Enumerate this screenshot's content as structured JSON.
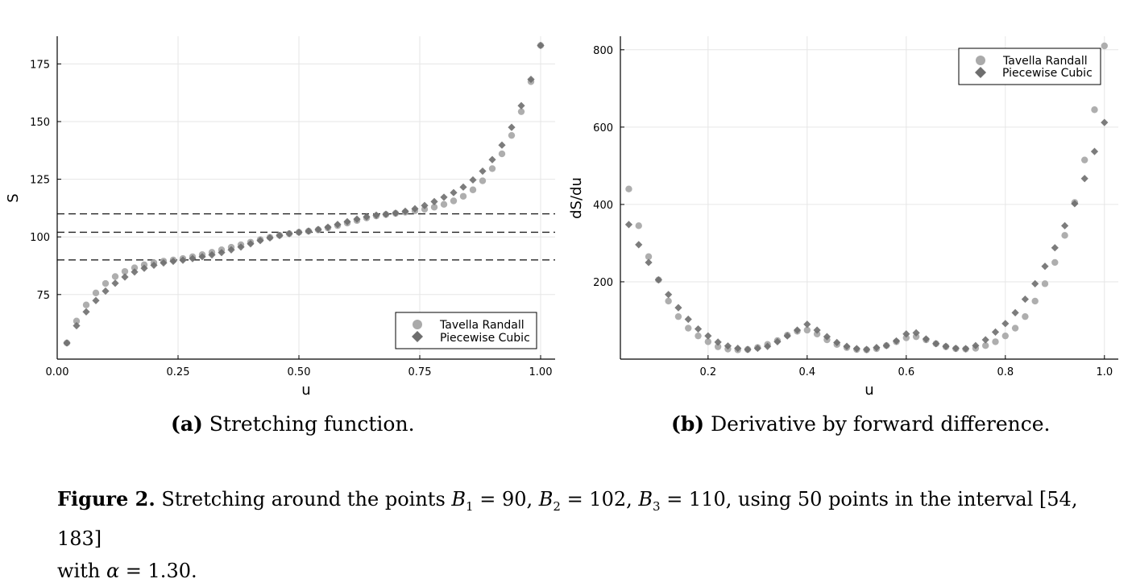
{
  "chart_data": [
    {
      "type": "scatter",
      "xlabel": "u",
      "ylabel": "S",
      "xlim": [
        0,
        1.03
      ],
      "ylim": [
        47,
        187
      ],
      "xticks": [
        0.0,
        0.25,
        0.5,
        0.75,
        1.0
      ],
      "xtick_labels": [
        "0.00",
        "0.25",
        "0.50",
        "0.75",
        "1.00"
      ],
      "yticks": [
        75,
        100,
        125,
        150,
        175
      ],
      "ytick_labels": [
        "75",
        "100",
        "125",
        "150",
        "175"
      ],
      "grid": true,
      "legend_position": "bottom-right",
      "hlines": [
        90,
        102,
        110
      ],
      "series": [
        {
          "name": "Tavella Randall",
          "marker": "circle",
          "color": "#aaaaaa",
          "x": [
            0.02,
            0.04,
            0.06,
            0.08,
            0.1,
            0.12,
            0.14,
            0.16,
            0.18,
            0.2,
            0.22,
            0.24,
            0.26,
            0.28,
            0.3,
            0.32,
            0.34,
            0.36,
            0.38,
            0.4,
            0.42,
            0.44,
            0.46,
            0.48,
            0.5,
            0.52,
            0.54,
            0.56,
            0.58,
            0.6,
            0.62,
            0.64,
            0.66,
            0.68,
            0.7,
            0.72,
            0.74,
            0.76,
            0.78,
            0.8,
            0.82,
            0.84,
            0.86,
            0.88,
            0.9,
            0.92,
            0.94,
            0.96,
            0.98,
            1.0
          ],
          "y": [
            54.0,
            63.5,
            70.5,
            75.7,
            79.8,
            82.8,
            85.0,
            86.6,
            87.9,
            88.8,
            89.5,
            90.0,
            90.6,
            91.4,
            92.3,
            93.3,
            94.4,
            95.5,
            96.6,
            97.7,
            98.8,
            99.8,
            100.7,
            101.4,
            102.0,
            102.5,
            103.1,
            103.9,
            104.9,
            106.0,
            107.1,
            108.2,
            109.1,
            109.7,
            110.2,
            110.7,
            111.3,
            112.0,
            112.9,
            114.1,
            115.6,
            117.6,
            120.4,
            124.3,
            129.6,
            136.0,
            144.0,
            154.3,
            167.3,
            183.0
          ]
        },
        {
          "name": "Piecewise Cubic",
          "marker": "diamond",
          "color": "#6e6e6e",
          "x": [
            0.02,
            0.04,
            0.06,
            0.08,
            0.1,
            0.12,
            0.14,
            0.16,
            0.18,
            0.2,
            0.22,
            0.24,
            0.26,
            0.28,
            0.3,
            0.32,
            0.34,
            0.36,
            0.38,
            0.4,
            0.42,
            0.44,
            0.46,
            0.48,
            0.5,
            0.52,
            0.54,
            0.56,
            0.58,
            0.6,
            0.62,
            0.64,
            0.66,
            0.68,
            0.7,
            0.72,
            0.74,
            0.76,
            0.78,
            0.8,
            0.82,
            0.84,
            0.86,
            0.88,
            0.9,
            0.92,
            0.94,
            0.96,
            0.98,
            1.0
          ],
          "y": [
            54.0,
            61.5,
            67.5,
            72.4,
            76.5,
            79.9,
            82.6,
            84.8,
            86.4,
            87.7,
            88.7,
            89.4,
            89.9,
            90.6,
            91.4,
            92.2,
            93.2,
            94.4,
            95.6,
            97.0,
            98.4,
            99.6,
            100.6,
            101.4,
            102.0,
            102.5,
            103.2,
            104.2,
            105.4,
            106.6,
            107.7,
            108.7,
            109.4,
            109.8,
            110.3,
            111.1,
            112.2,
            113.6,
            115.3,
            117.2,
            119.2,
            121.6,
            124.7,
            128.5,
            133.5,
            139.8,
            147.5,
            156.9,
            168.3,
            183.0
          ]
        }
      ]
    },
    {
      "type": "scatter",
      "xlabel": "u",
      "ylabel": "dS/du",
      "xlim": [
        0.023,
        1.028
      ],
      "ylim": [
        0,
        835
      ],
      "xticks": [
        0.2,
        0.4,
        0.6,
        0.8,
        1.0
      ],
      "xtick_labels": [
        "0.2",
        "0.4",
        "0.6",
        "0.8",
        "1.0"
      ],
      "yticks": [
        200,
        400,
        600,
        800
      ],
      "ytick_labels": [
        "200",
        "400",
        "600",
        "800"
      ],
      "grid": true,
      "legend_position": "top-right",
      "series": [
        {
          "name": "Tavella Randall",
          "marker": "circle",
          "color": "#aaaaaa",
          "x": [
            0.04,
            0.06,
            0.08,
            0.1,
            0.12,
            0.14,
            0.16,
            0.18,
            0.2,
            0.22,
            0.24,
            0.26,
            0.28,
            0.3,
            0.32,
            0.34,
            0.36,
            0.38,
            0.4,
            0.42,
            0.44,
            0.46,
            0.48,
            0.5,
            0.52,
            0.54,
            0.56,
            0.58,
            0.6,
            0.62,
            0.64,
            0.66,
            0.68,
            0.7,
            0.72,
            0.74,
            0.76,
            0.78,
            0.8,
            0.82,
            0.84,
            0.86,
            0.88,
            0.9,
            0.92,
            0.94,
            0.96,
            0.98,
            1.0
          ],
          "y": [
            440,
            345,
            265,
            205,
            150,
            110,
            80,
            60,
            45,
            32,
            26,
            24,
            25,
            30,
            38,
            48,
            62,
            72,
            75,
            65,
            50,
            38,
            30,
            25,
            24,
            27,
            35,
            45,
            55,
            58,
            50,
            40,
            32,
            27,
            26,
            28,
            35,
            45,
            60,
            80,
            110,
            150,
            195,
            250,
            320,
            405,
            515,
            645,
            810
          ]
        },
        {
          "name": "Piecewise Cubic",
          "marker": "diamond",
          "color": "#6e6e6e",
          "x": [
            0.04,
            0.06,
            0.08,
            0.1,
            0.12,
            0.14,
            0.16,
            0.18,
            0.2,
            0.22,
            0.24,
            0.26,
            0.28,
            0.3,
            0.32,
            0.34,
            0.36,
            0.38,
            0.4,
            0.42,
            0.44,
            0.46,
            0.48,
            0.5,
            0.52,
            0.54,
            0.56,
            0.58,
            0.6,
            0.62,
            0.64,
            0.66,
            0.68,
            0.7,
            0.72,
            0.74,
            0.76,
            0.78,
            0.8,
            0.82,
            0.84,
            0.86,
            0.88,
            0.9,
            0.92,
            0.94,
            0.96,
            0.98,
            1.0
          ],
          "y": [
            348,
            296,
            250,
            205,
            167,
            133,
            103,
            78,
            60,
            44,
            34,
            28,
            25,
            28,
            33,
            45,
            60,
            75,
            90,
            75,
            58,
            43,
            33,
            27,
            25,
            30,
            35,
            47,
            65,
            68,
            52,
            40,
            33,
            28,
            27,
            35,
            50,
            70,
            92,
            120,
            155,
            195,
            240,
            288,
            345,
            402,
            467,
            537,
            612
          ]
        }
      ]
    }
  ],
  "captions": {
    "a_label": "(a)",
    "a_text": " Stretching function.",
    "b_label": "(b)",
    "b_text": " Derivative by forward difference.",
    "figure_label": "Figure 2.",
    "figure_text_1": " Stretching around the points ",
    "b1_sym": "B",
    "b1_sub": "1",
    "b1_val": " = 90, ",
    "b2_sym": "B",
    "b2_sub": "2",
    "b2_val": " = 102, ",
    "b3_sym": "B",
    "b3_sub": "3",
    "b3_val": " = 110, using 50 points in the interval [54, 183]",
    "figure_text_2": "with ",
    "alpha_sym": "α",
    "alpha_val": " = 1.30."
  }
}
